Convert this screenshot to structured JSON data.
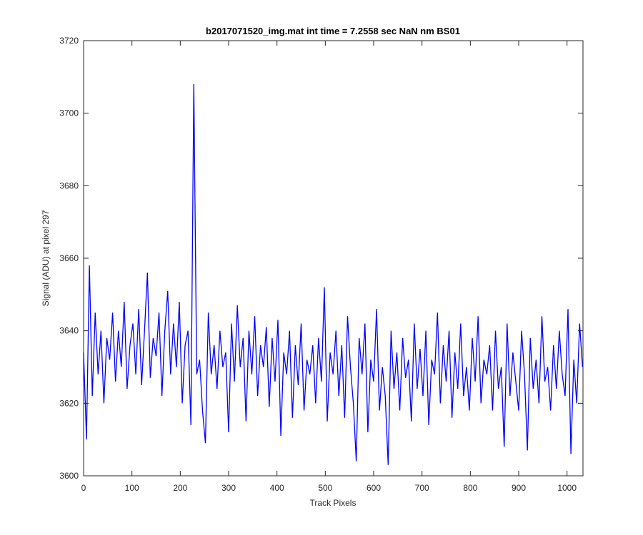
{
  "chart_data": {
    "type": "line",
    "title": "b2017071520_img.mat int time = 7.2558 sec  NaN nm BS01",
    "x_label": "Track Pixels",
    "y_label": "Signal (ADU) at pixel 297",
    "xlim": [
      0,
      1033
    ],
    "ylim": [
      3600,
      3720
    ],
    "xticks": [
      0,
      100,
      200,
      300,
      400,
      500,
      600,
      700,
      800,
      900,
      1000
    ],
    "yticks": [
      3600,
      3620,
      3640,
      3660,
      3680,
      3700,
      3720
    ],
    "grid": false,
    "color": "#0000ff",
    "x": [
      0,
      6,
      12,
      18,
      24,
      30,
      36,
      42,
      48,
      54,
      60,
      66,
      72,
      78,
      84,
      90,
      96,
      102,
      108,
      114,
      120,
      126,
      132,
      138,
      144,
      150,
      156,
      162,
      168,
      174,
      180,
      186,
      192,
      198,
      204,
      210,
      216,
      222,
      228,
      234,
      240,
      246,
      252,
      258,
      264,
      270,
      276,
      282,
      288,
      294,
      300,
      306,
      312,
      318,
      324,
      330,
      336,
      342,
      348,
      354,
      360,
      366,
      372,
      378,
      384,
      390,
      396,
      402,
      408,
      414,
      420,
      426,
      432,
      438,
      444,
      450,
      456,
      462,
      468,
      474,
      480,
      486,
      492,
      498,
      504,
      510,
      516,
      522,
      528,
      534,
      540,
      546,
      552,
      558,
      564,
      570,
      576,
      582,
      588,
      594,
      600,
      606,
      612,
      618,
      624,
      630,
      636,
      642,
      648,
      654,
      660,
      666,
      672,
      678,
      684,
      690,
      696,
      702,
      708,
      714,
      720,
      726,
      732,
      738,
      744,
      750,
      756,
      762,
      768,
      774,
      780,
      786,
      792,
      798,
      804,
      810,
      816,
      822,
      828,
      834,
      840,
      846,
      852,
      858,
      864,
      870,
      876,
      882,
      888,
      894,
      900,
      906,
      912,
      918,
      924,
      930,
      936,
      942,
      948,
      954,
      960,
      966,
      972,
      978,
      984,
      990,
      996,
      1002,
      1008,
      1014,
      1020,
      1026,
      1032
    ],
    "values": [
      3634,
      3610,
      3658,
      3622,
      3645,
      3628,
      3640,
      3620,
      3638,
      3632,
      3645,
      3626,
      3640,
      3630,
      3648,
      3624,
      3636,
      3642,
      3628,
      3646,
      3625,
      3640,
      3656,
      3627,
      3638,
      3633,
      3645,
      3622,
      3640,
      3651,
      3628,
      3642,
      3630,
      3648,
      3620,
      3636,
      3640,
      3614,
      3708,
      3628,
      3632,
      3618,
      3609,
      3645,
      3628,
      3636,
      3624,
      3640,
      3630,
      3634,
      3612,
      3642,
      3626,
      3647,
      3630,
      3638,
      3615,
      3640,
      3628,
      3644,
      3622,
      3636,
      3630,
      3641,
      3619,
      3638,
      3626,
      3643,
      3611,
      3634,
      3628,
      3640,
      3616,
      3636,
      3625,
      3642,
      3618,
      3632,
      3628,
      3636,
      3620,
      3638,
      3626,
      3652,
      3615,
      3634,
      3628,
      3640,
      3622,
      3636,
      3616,
      3644,
      3630,
      3620,
      3604,
      3638,
      3628,
      3642,
      3612,
      3632,
      3626,
      3646,
      3618,
      3630,
      3622,
      3603,
      3640,
      3624,
      3634,
      3618,
      3638,
      3627,
      3632,
      3615,
      3642,
      3624,
      3635,
      3622,
      3640,
      3614,
      3632,
      3628,
      3645,
      3620,
      3636,
      3626,
      3640,
      3616,
      3634,
      3624,
      3642,
      3622,
      3630,
      3618,
      3638,
      3626,
      3644,
      3620,
      3632,
      3628,
      3636,
      3618,
      3640,
      3624,
      3630,
      3608,
      3642,
      3622,
      3634,
      3626,
      3618,
      3640,
      3628,
      3607,
      3638,
      3624,
      3632,
      3620,
      3644,
      3626,
      3630,
      3618,
      3636,
      3624,
      3640,
      3628,
      3622,
      3646,
      3606,
      3632,
      3620,
      3642,
      3630
    ]
  }
}
